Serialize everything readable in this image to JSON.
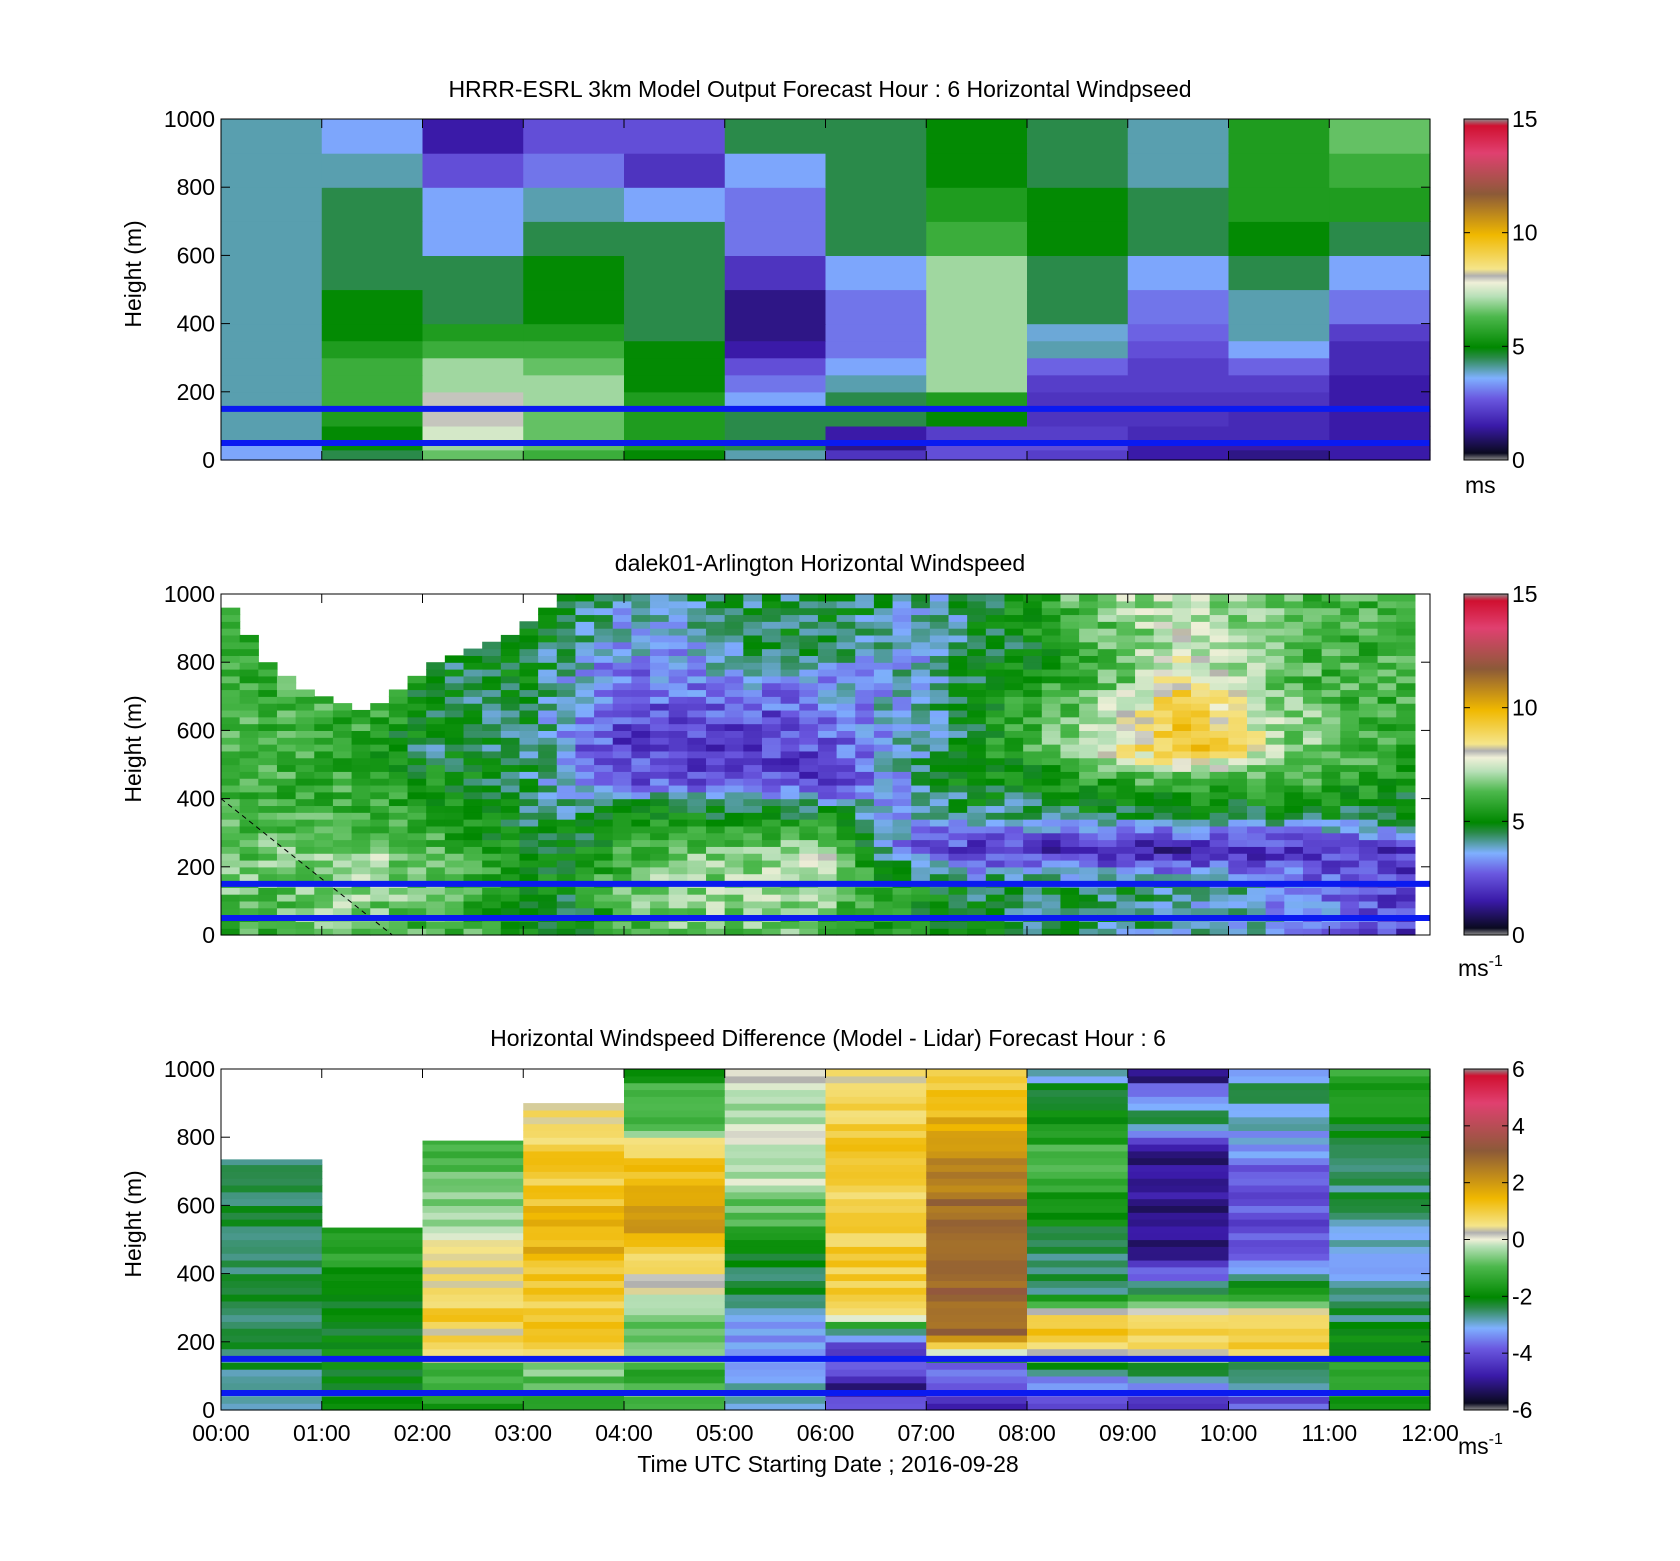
{
  "figure": {
    "xlabel": "Time UTC  Starting Date ; 2016-09-28"
  },
  "chart_data": [
    {
      "type": "heatmap",
      "title": "HRRR-ESRL 3km Model Output   Forecast Hour : 6 Horizontal Windpseed",
      "ylabel": "Height (m)",
      "ylim": [
        0,
        1000
      ],
      "yticks": [
        "0",
        "200",
        "400",
        "600",
        "800",
        "1000"
      ],
      "xlim_hours": [
        0,
        12
      ],
      "colorbar": {
        "range": [
          0,
          15
        ],
        "ticks": [
          "0",
          "5",
          "10",
          "15"
        ],
        "unit": "ms",
        "unit_sup": ""
      },
      "bands_x": [
        0,
        1,
        2,
        3,
        4,
        5,
        6,
        7,
        8,
        9,
        10,
        11,
        12
      ],
      "bands_y": [
        0,
        30,
        60,
        100,
        150,
        200,
        250,
        300,
        350,
        400,
        500,
        600,
        700,
        800,
        900,
        1000
      ],
      "values": [
        [
          3.5,
          4.5,
          6.5,
          6.0,
          5.0,
          4.0,
          2.0,
          2.5,
          2.2,
          1.5,
          1.2,
          1.5
        ],
        [
          3.5,
          5.0,
          7.0,
          6.5,
          5.5,
          4.5,
          1.2,
          2.5,
          2.5,
          1.5,
          1.5,
          1.5
        ],
        [
          4.0,
          5.0,
          7.5,
          6.5,
          5.5,
          4.5,
          1.5,
          2.2,
          2.2,
          1.8,
          1.8,
          1.5
        ],
        [
          4.0,
          5.5,
          8.0,
          6.5,
          5.5,
          4.5,
          4.5,
          5.0,
          2.0,
          2.0,
          1.8,
          1.5
        ],
        [
          4.0,
          6.0,
          8.0,
          7.0,
          5.5,
          3.5,
          4.5,
          5.5,
          2.0,
          2.0,
          2.0,
          1.5
        ],
        [
          4.0,
          6.0,
          7.0,
          7.0,
          5.0,
          3.0,
          4.0,
          7.0,
          2.2,
          2.2,
          2.2,
          1.5
        ],
        [
          4.0,
          6.0,
          7.0,
          6.5,
          5.0,
          2.5,
          3.5,
          7.0,
          2.8,
          2.2,
          2.8,
          1.8
        ],
        [
          4.0,
          5.5,
          6.0,
          6.0,
          5.0,
          1.5,
          3.0,
          7.0,
          4.0,
          2.5,
          3.5,
          1.8
        ],
        [
          4.0,
          5.0,
          5.5,
          5.5,
          4.5,
          1.2,
          3.0,
          7.0,
          3.8,
          2.8,
          4.0,
          2.2
        ],
        [
          4.0,
          5.0,
          4.5,
          5.0,
          4.5,
          1.2,
          3.0,
          7.0,
          4.5,
          3.0,
          4.0,
          3.0
        ],
        [
          4.0,
          4.5,
          4.5,
          5.0,
          4.5,
          2.0,
          3.5,
          7.0,
          4.5,
          3.5,
          4.5,
          3.5
        ],
        [
          4.0,
          4.5,
          3.5,
          4.5,
          4.5,
          3.0,
          4.5,
          6.0,
          5.0,
          4.5,
          5.0,
          4.5
        ],
        [
          4.0,
          4.5,
          3.5,
          4.0,
          3.5,
          3.0,
          4.5,
          5.5,
          5.0,
          4.5,
          5.5,
          5.5
        ],
        [
          4.0,
          4.0,
          2.5,
          3.0,
          2.0,
          3.5,
          4.5,
          5.0,
          4.5,
          4.0,
          5.5,
          6.0
        ],
        [
          4.0,
          3.5,
          1.5,
          2.5,
          2.5,
          4.5,
          4.5,
          5.0,
          4.5,
          4.0,
          5.5,
          6.5
        ]
      ],
      "overlay_lines_m": [
        50,
        150
      ]
    },
    {
      "type": "heatmap",
      "title": "dalek01-Arlington  Horizontal Windspeed",
      "ylabel": "Height (m)",
      "ylim": [
        0,
        1000
      ],
      "yticks": [
        "0",
        "200",
        "400",
        "600",
        "800",
        "1000"
      ],
      "xlim_hours": [
        0,
        12
      ],
      "data_extent_hours": [
        0,
        11.85
      ],
      "colorbar": {
        "range": [
          0,
          15
        ],
        "ticks": [
          "0",
          "5",
          "10",
          "15"
        ],
        "unit": "ms",
        "unit_sup": "-1"
      },
      "knot_hours": [
        0,
        0.5,
        1,
        1.5,
        2,
        2.5,
        3,
        3.5,
        4,
        4.5,
        5,
        5.5,
        6,
        6.5,
        7,
        7.5,
        8,
        8.5,
        9,
        9.5,
        10,
        10.5,
        11,
        11.5,
        11.85
      ],
      "knot_heights": [
        0,
        150,
        250,
        350,
        450,
        550,
        650,
        750,
        850,
        1000
      ],
      "knot_values": [
        [
          6.0,
          6.0,
          6.5,
          6.5,
          6.0,
          6.0,
          5.0,
          4.5,
          6.0,
          6.5,
          6.5,
          6.5,
          6.0,
          5.5,
          5.0,
          5.0,
          4.5,
          4.5,
          4.0,
          4.0,
          4.0,
          3.5,
          3.0,
          2.5,
          2.0
        ],
        [
          6.5,
          6.5,
          7.0,
          7.0,
          6.5,
          6.0,
          5.0,
          5.0,
          6.5,
          7.0,
          7.0,
          7.0,
          7.0,
          6.0,
          5.0,
          4.5,
          4.5,
          4.5,
          4.5,
          4.0,
          4.0,
          3.5,
          3.0,
          2.5,
          2.2
        ],
        [
          6.5,
          6.5,
          6.5,
          7.0,
          6.5,
          6.0,
          5.0,
          5.0,
          6.0,
          6.5,
          6.5,
          7.0,
          7.5,
          4.0,
          2.5,
          1.8,
          1.8,
          1.5,
          1.5,
          1.5,
          1.8,
          1.8,
          2.0,
          2.0,
          2.0
        ],
        [
          6.0,
          6.0,
          6.0,
          6.0,
          5.5,
          5.0,
          4.5,
          4.5,
          5.0,
          5.5,
          5.0,
          5.0,
          5.0,
          4.0,
          3.5,
          4.5,
          4.0,
          4.5,
          4.5,
          4.5,
          4.5,
          4.5,
          4.5,
          4.5,
          4.5
        ],
        [
          6.0,
          6.0,
          6.0,
          6.0,
          5.5,
          5.0,
          4.5,
          3.5,
          2.8,
          2.5,
          2.5,
          2.5,
          2.0,
          3.0,
          4.5,
          5.0,
          5.0,
          5.5,
          6.0,
          6.0,
          6.0,
          6.0,
          6.0,
          5.5,
          5.0
        ],
        [
          6.0,
          6.0,
          6.0,
          5.5,
          4.5,
          4.5,
          4.5,
          3.0,
          2.2,
          2.0,
          2.0,
          2.2,
          2.5,
          3.5,
          4.0,
          5.0,
          6.0,
          7.0,
          8.5,
          9.5,
          9.0,
          7.0,
          6.5,
          6.0,
          5.5
        ],
        [
          6.0,
          6.0,
          6.0,
          6.0,
          5.0,
          4.5,
          4.5,
          3.5,
          2.5,
          2.5,
          2.5,
          2.5,
          3.0,
          3.5,
          4.0,
          5.0,
          6.0,
          6.5,
          8.0,
          9.5,
          8.5,
          7.0,
          6.5,
          6.0,
          6.0
        ],
        [
          6.0,
          6.0,
          6.0,
          6.0,
          5.0,
          4.5,
          5.0,
          3.5,
          3.0,
          3.0,
          3.5,
          3.5,
          3.5,
          3.5,
          4.0,
          4.5,
          5.5,
          6.0,
          6.5,
          8.5,
          7.5,
          6.5,
          6.0,
          6.0,
          6.0
        ],
        [
          6.0,
          6.0,
          6.0,
          6.0,
          4.5,
          4.5,
          5.0,
          4.0,
          3.5,
          3.5,
          4.0,
          4.5,
          4.5,
          4.0,
          3.5,
          4.5,
          5.0,
          6.0,
          6.5,
          7.5,
          7.0,
          6.5,
          6.0,
          6.0,
          6.0
        ],
        [
          6.0,
          6.0,
          6.0,
          6.0,
          5.0,
          5.0,
          5.0,
          4.5,
          4.0,
          4.0,
          4.5,
          4.5,
          4.5,
          4.5,
          4.0,
          4.5,
          5.5,
          6.5,
          7.0,
          7.5,
          7.0,
          6.5,
          6.0,
          6.0,
          6.0
        ]
      ],
      "missing_top_m": [
        [
          0,
          1000
        ],
        [
          0.5,
          780
        ],
        [
          1,
          700
        ],
        [
          1.5,
          660
        ],
        [
          1.85,
          750
        ],
        [
          2.2,
          820
        ],
        [
          2.6,
          850
        ],
        [
          3.0,
          900
        ],
        [
          3.2,
          960
        ],
        [
          3.45,
          1000
        ]
      ],
      "overlay_lines_m": [
        50,
        150
      ],
      "dashed_line": {
        "x_hours": [
          0,
          1.7
        ],
        "y_m": [
          400,
          0
        ]
      }
    },
    {
      "type": "heatmap",
      "title": "Horizontal Windspeed Difference (Model - Lidar) Forecast Hour : 6",
      "ylabel": "Height (m)",
      "ylim": [
        0,
        1000
      ],
      "yticks": [
        "0",
        "200",
        "400",
        "600",
        "800",
        "1000"
      ],
      "xlim_hours": [
        0,
        12
      ],
      "xticks": [
        "00:00",
        "01:00",
        "02:00",
        "03:00",
        "04:00",
        "05:00",
        "06:00",
        "07:00",
        "08:00",
        "09:00",
        "10:00",
        "11:00",
        "12:00"
      ],
      "colorbar": {
        "range": [
          -6,
          6
        ],
        "ticks": [
          "-6",
          "-4",
          "-2",
          "0",
          "2",
          "4",
          "6"
        ],
        "unit": "ms",
        "unit_sup": "-1"
      },
      "column_tops_m": [
        735,
        535,
        790,
        900,
        1000,
        1000,
        1000,
        1000,
        1000,
        1000,
        1000,
        1000
      ],
      "band_heights": [
        0,
        50,
        100,
        150,
        200,
        250,
        300,
        400,
        500,
        600,
        700,
        800,
        900,
        1000
      ],
      "values": [
        [
          -2.5,
          -2.2,
          -1.5,
          -1.5,
          -1.0,
          -3.0,
          -4.0,
          -4.5,
          -4.0,
          -4.5,
          -4.0,
          -2.0
        ],
        [
          -2.5,
          -2.2,
          -1.0,
          -1.0,
          -1.0,
          -3.0,
          -5.5,
          -3.5,
          -3.5,
          -3.0,
          -2.5,
          -1.5
        ],
        [
          -2.5,
          -2.0,
          -1.0,
          -0.5,
          -1.5,
          -3.0,
          -3.5,
          -4.0,
          -2.5,
          -2.5,
          -3.0,
          -1.5
        ],
        [
          -2.5,
          -2.0,
          1.0,
          1.0,
          0.0,
          -3.0,
          -4.5,
          0.0,
          0.5,
          1.0,
          1.0,
          -2.0
        ],
        [
          -2.5,
          -2.0,
          0.5,
          1.0,
          -1.0,
          -3.5,
          -3.0,
          3.0,
          1.0,
          1.0,
          1.0,
          -2.0
        ],
        [
          -2.5,
          -2.0,
          1.0,
          1.0,
          -0.5,
          -3.0,
          0.5,
          3.0,
          1.0,
          1.0,
          1.0,
          -2.5
        ],
        [
          -2.5,
          -2.0,
          0.5,
          1.0,
          0.0,
          -2.5,
          1.0,
          3.0,
          -2.5,
          -2.5,
          -2.0,
          -2.5
        ],
        [
          -2.5,
          -1.5,
          0.5,
          1.5,
          1.0,
          -2.0,
          1.0,
          3.0,
          -2.5,
          -5.0,
          -3.5,
          -3.5
        ],
        [
          -2.5,
          -1.5,
          -0.5,
          1.5,
          2.0,
          -1.0,
          1.0,
          3.0,
          -2.0,
          -5.0,
          -4.0,
          -2.5
        ],
        [
          -2.5,
          -1.5,
          -0.5,
          1.0,
          1.5,
          -0.5,
          1.0,
          2.5,
          -1.5,
          -5.0,
          -4.0,
          -2.5
        ],
        [
          -2.5,
          -1.5,
          -1.0,
          1.0,
          1.0,
          0.0,
          1.0,
          2.0,
          -1.0,
          -5.0,
          -3.5,
          -2.5
        ],
        [
          -2.5,
          -1.5,
          -1.0,
          0.5,
          -1.0,
          -0.5,
          1.0,
          1.5,
          -2.0,
          -2.5,
          -3.0,
          -2.0
        ],
        [
          -2.5,
          -1.5,
          -1.0,
          0.5,
          -1.0,
          0.0,
          0.5,
          1.0,
          -2.5,
          -3.5,
          -2.5,
          -1.5
        ],
        [
          -2.5,
          -1.5,
          -1.0,
          0.5,
          -2.0,
          0.0,
          0.5,
          1.0,
          -3.0,
          -5.0,
          -3.0,
          -1.5
        ]
      ],
      "overlay_lines_m": [
        50,
        150
      ]
    }
  ]
}
